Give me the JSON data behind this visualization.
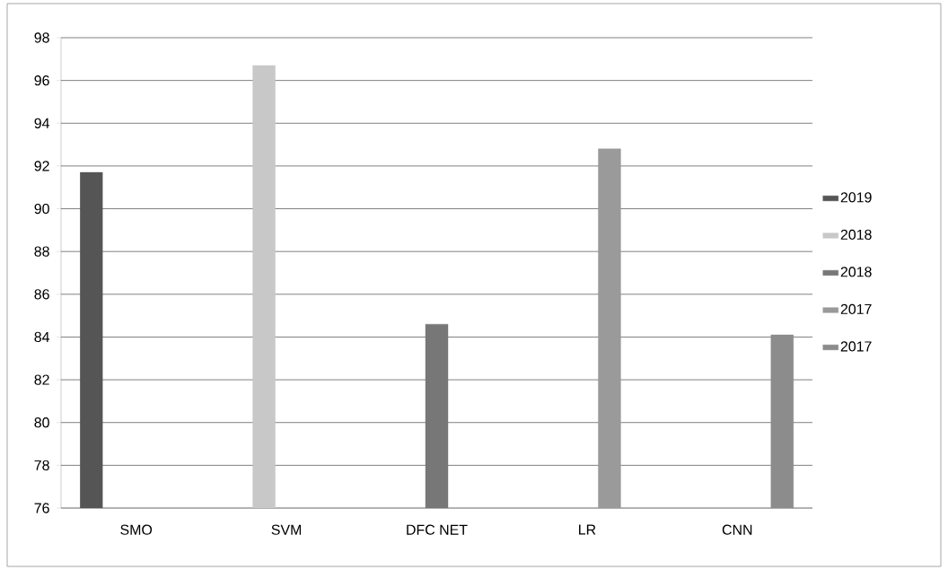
{
  "chart_data": {
    "type": "bar",
    "categories": [
      "SMO",
      "SVM",
      "DFC NET",
      "LR",
      "CNN"
    ],
    "series": [
      {
        "name": "2019",
        "color": "#555555",
        "values": [
          91.7,
          null,
          null,
          null,
          null
        ]
      },
      {
        "name": "2018",
        "color": "#c8c8c8",
        "values": [
          null,
          96.7,
          null,
          null,
          null
        ]
      },
      {
        "name": "2018",
        "color": "#777777",
        "values": [
          null,
          null,
          84.6,
          null,
          null
        ]
      },
      {
        "name": "2017",
        "color": "#9a9a9a",
        "values": [
          null,
          null,
          null,
          92.8,
          null
        ]
      },
      {
        "name": "2017",
        "color": "#8c8c8c",
        "values": [
          null,
          null,
          null,
          null,
          84.1
        ]
      }
    ],
    "ylim": [
      76,
      98
    ],
    "yticks": [
      76,
      78,
      80,
      82,
      84,
      86,
      88,
      90,
      92,
      94,
      96,
      98
    ],
    "grid": "y",
    "legend": "right"
  }
}
